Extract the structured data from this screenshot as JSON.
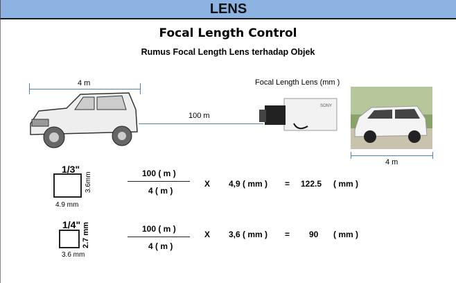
{
  "header": {
    "title": "LENS"
  },
  "title": "Focal Length Control",
  "subtitle": "Rumus Focal Length Lens terhadap Objek",
  "diagram": {
    "object_width_left": "4 m",
    "distance": "100 m",
    "lens_label": "Focal Length Lens (mm )",
    "object_width_right": "4 m",
    "camera_brand": "SONY"
  },
  "rows": [
    {
      "sensor": "1/3\"",
      "height": "3.6mm",
      "width": "4.9 mm",
      "numerator": "100 ( m )",
      "denominator": "4 ( m )",
      "times": "X",
      "factor": "4,9 ( mm )",
      "equals": "=",
      "result": "122.5",
      "unit": "( mm )"
    },
    {
      "sensor": "1/4\"",
      "height": "2.7 mm",
      "width": "3.6 mm",
      "numerator": "100 ( m )",
      "denominator": "4 ( m )",
      "times": "X",
      "factor": "3,6 ( mm )",
      "equals": "=",
      "result": "90",
      "unit": "( mm )"
    }
  ],
  "colors": {
    "header": "#8db3e2",
    "line": "#4f81bd"
  }
}
